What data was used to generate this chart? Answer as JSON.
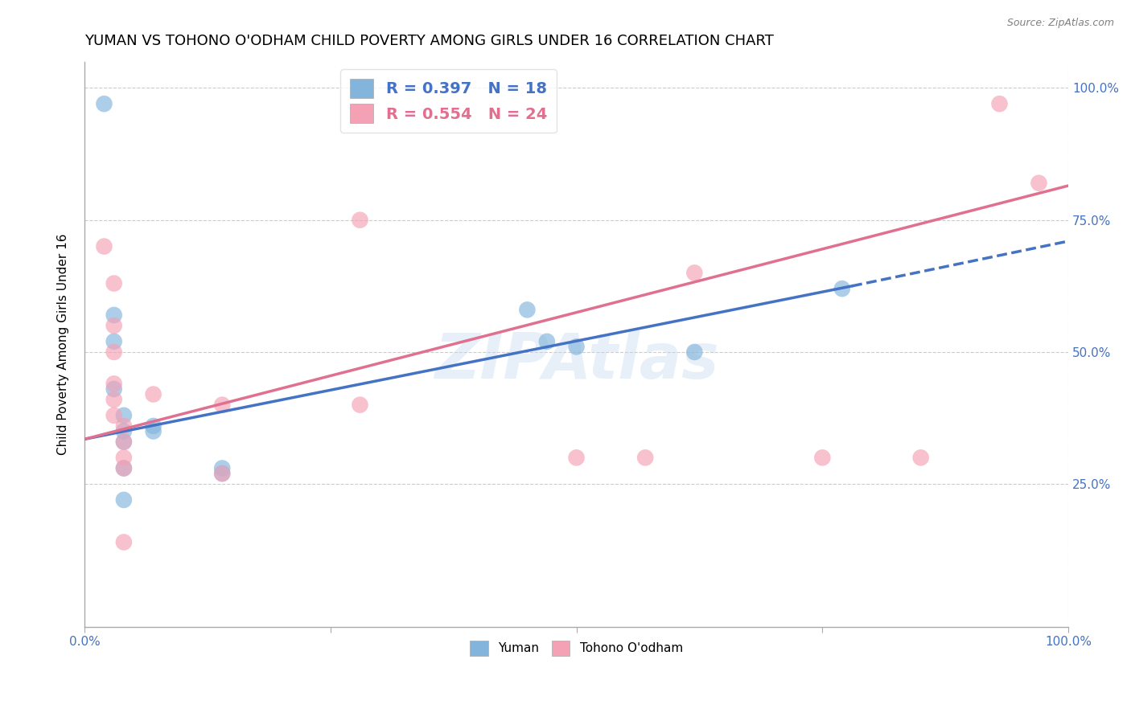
{
  "title": "YUMAN VS TOHONO O'ODHAM CHILD POVERTY AMONG GIRLS UNDER 16 CORRELATION CHART",
  "source": "Source: ZipAtlas.com",
  "ylabel": "Child Poverty Among Girls Under 16",
  "watermark": "ZIPAtlas",
  "yuman_points": [
    [
      0.02,
      0.97
    ],
    [
      0.03,
      0.57
    ],
    [
      0.03,
      0.52
    ],
    [
      0.03,
      0.43
    ],
    [
      0.04,
      0.38
    ],
    [
      0.04,
      0.35
    ],
    [
      0.04,
      0.33
    ],
    [
      0.04,
      0.28
    ],
    [
      0.04,
      0.22
    ],
    [
      0.07,
      0.36
    ],
    [
      0.07,
      0.35
    ],
    [
      0.14,
      0.28
    ],
    [
      0.14,
      0.27
    ],
    [
      0.45,
      0.58
    ],
    [
      0.47,
      0.52
    ],
    [
      0.5,
      0.51
    ],
    [
      0.62,
      0.5
    ],
    [
      0.77,
      0.62
    ]
  ],
  "tohono_points": [
    [
      0.02,
      0.7
    ],
    [
      0.03,
      0.63
    ],
    [
      0.03,
      0.55
    ],
    [
      0.03,
      0.5
    ],
    [
      0.03,
      0.44
    ],
    [
      0.03,
      0.41
    ],
    [
      0.03,
      0.38
    ],
    [
      0.04,
      0.36
    ],
    [
      0.04,
      0.33
    ],
    [
      0.04,
      0.3
    ],
    [
      0.04,
      0.28
    ],
    [
      0.04,
      0.14
    ],
    [
      0.07,
      0.42
    ],
    [
      0.14,
      0.4
    ],
    [
      0.14,
      0.27
    ],
    [
      0.28,
      0.4
    ],
    [
      0.28,
      0.75
    ],
    [
      0.5,
      0.3
    ],
    [
      0.57,
      0.3
    ],
    [
      0.62,
      0.65
    ],
    [
      0.75,
      0.3
    ],
    [
      0.85,
      0.3
    ],
    [
      0.93,
      0.97
    ],
    [
      0.97,
      0.82
    ]
  ],
  "blue_line_solid": {
    "x0": 0.0,
    "y0": 0.335,
    "x1": 0.78,
    "y1": 0.625
  },
  "blue_line_dashed": {
    "x0": 0.78,
    "y0": 0.625,
    "x1": 1.0,
    "y1": 0.71
  },
  "pink_line": {
    "x0": 0.0,
    "y0": 0.335,
    "x1": 1.0,
    "y1": 0.815
  },
  "blue_color": "#82B4DC",
  "pink_color": "#F4A0B5",
  "blue_line_color": "#4472C4",
  "pink_line_color": "#E07090",
  "R_yuman": 0.397,
  "N_yuman": 18,
  "R_tohono": 0.554,
  "N_tohono": 24,
  "xlim": [
    0.0,
    1.0
  ],
  "ylim": [
    -0.02,
    1.05
  ],
  "xticks": [
    0.0,
    0.25,
    0.5,
    0.75,
    1.0
  ],
  "yticks": [
    0.0,
    0.25,
    0.5,
    0.75,
    1.0
  ],
  "grid_color": "#CCCCCC",
  "background_color": "#FFFFFF",
  "title_fontsize": 13,
  "label_fontsize": 11,
  "tick_fontsize": 11,
  "legend_fontsize": 14
}
